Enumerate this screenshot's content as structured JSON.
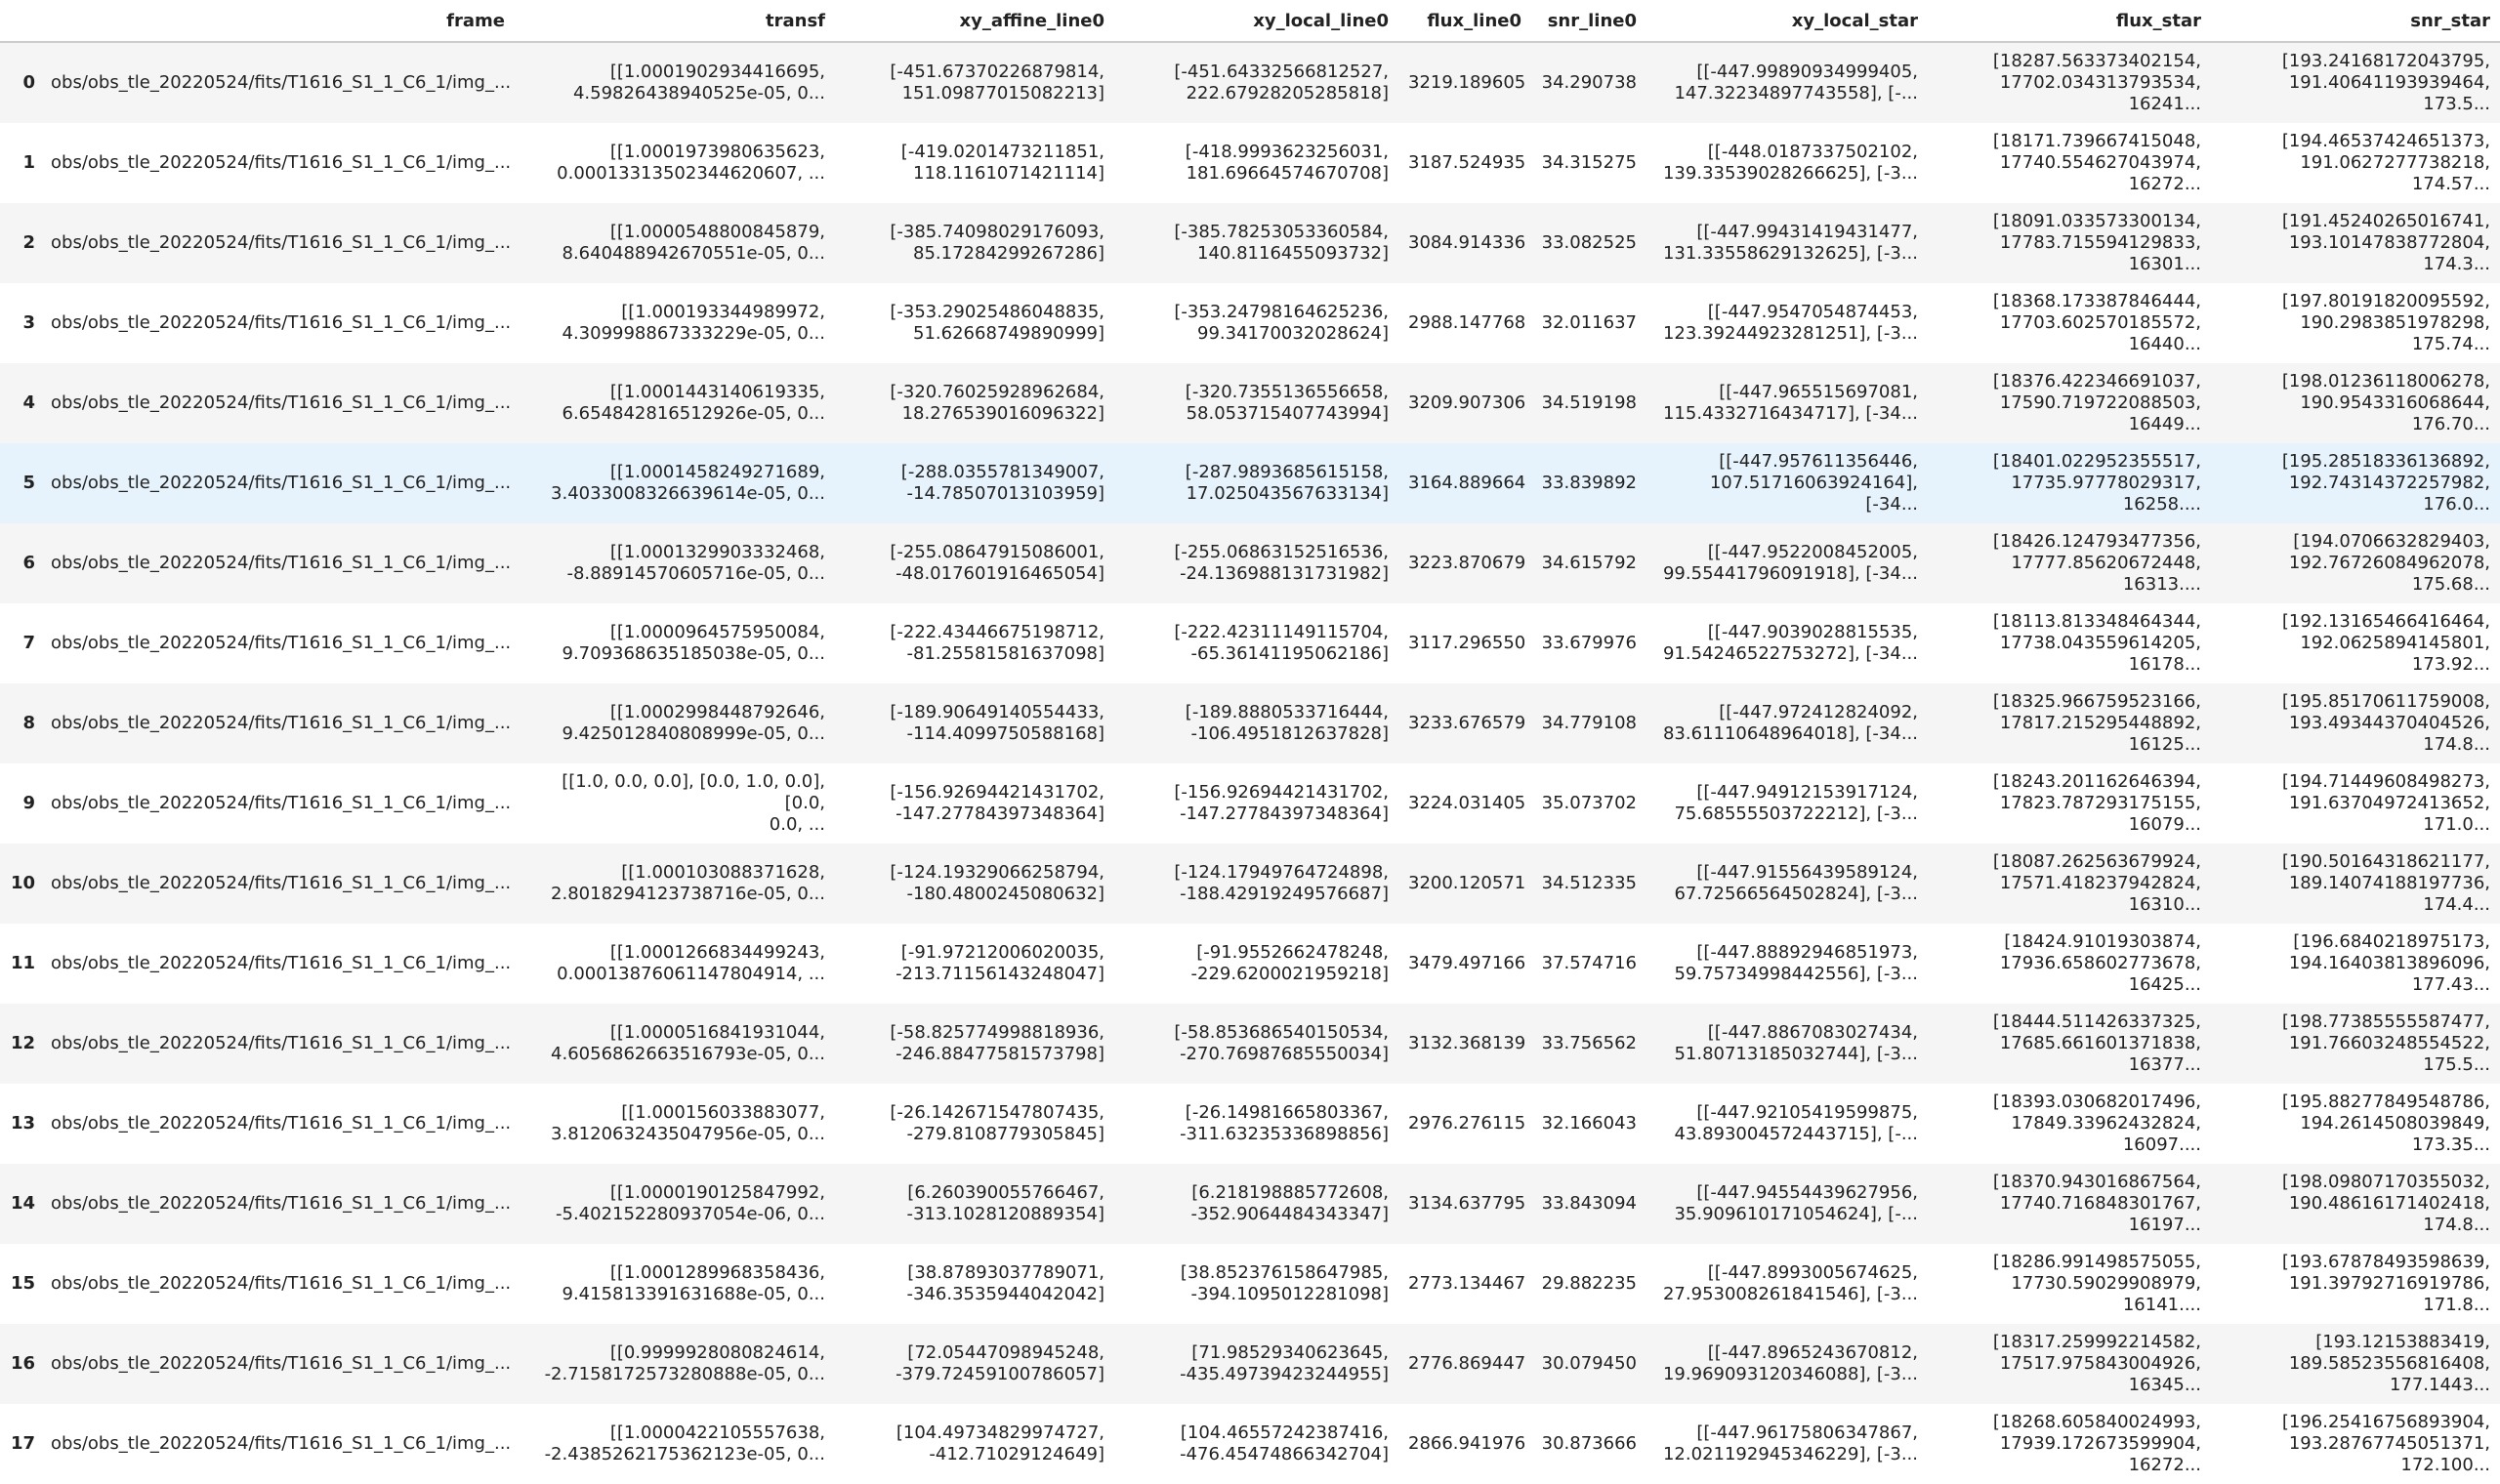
{
  "table": {
    "columns": [
      "frame",
      "transf",
      "xy_affine_line0",
      "xy_local_line0",
      "flux_line0",
      "snr_line0",
      "xy_local_star",
      "flux_star",
      "snr_star"
    ],
    "index": [
      0,
      1,
      2,
      3,
      4,
      5,
      6,
      7,
      8,
      9,
      10,
      11,
      12,
      13,
      14,
      15,
      16,
      17
    ],
    "rows": [
      [
        "obs/obs_tle_20220524/fits/T1616_S1_1_C6_1/img_...",
        "[[1.0001902934416695,\n4.59826438940525e-05, 0...",
        "[-451.67370226879814,\n151.09877015082213]",
        "[-451.64332566812527,\n222.67928205285818]",
        "3219.189605",
        "34.290738",
        "[[-447.99890934999405,\n147.32234897743558], [-...",
        "[18287.563373402154,\n17702.034313793534, 16241...",
        "[193.24168172043795,\n191.40641193939464, 173.5..."
      ],
      [
        "obs/obs_tle_20220524/fits/T1616_S1_1_C6_1/img_...",
        "[[1.0001973980635623,\n0.00013313502344620607, ...",
        "[-419.0201473211851,\n118.1161071421114]",
        "[-418.9993623256031,\n181.69664574670708]",
        "3187.524935",
        "34.315275",
        "[[-448.0187337502102,\n139.33539028266625], [-3...",
        "[18171.739667415048,\n17740.554627043974,\n16272...",
        "[194.46537424651373,\n191.0627277738218, 174.57..."
      ],
      [
        "obs/obs_tle_20220524/fits/T1616_S1_1_C6_1/img_...",
        "[[1.0000548800845879,\n8.640488942670551e-05, 0...",
        "[-385.74098029176093,\n85.17284299267286]",
        "[-385.78253053360584,\n140.8116455093732]",
        "3084.914336",
        "33.082525",
        "[[-447.99431419431477,\n131.33558629132625], [-3...",
        "[18091.033573300134,\n17783.715594129833, 16301...",
        "[191.45240265016741,\n193.10147838772804, 174.3..."
      ],
      [
        "obs/obs_tle_20220524/fits/T1616_S1_1_C6_1/img_...",
        "[[1.000193344989972,\n4.309998867333229e-05, 0...",
        "[-353.29025486048835,\n51.62668749890999]",
        "[-353.24798164625236,\n99.34170032028624]",
        "2988.147768",
        "32.011637",
        "[[-447.9547054874453,\n123.39244923281251], [-3...",
        "[18368.173387846444,\n17703.602570185572,\n16440...",
        "[197.80191820095592,\n190.2983851978298, 175.74..."
      ],
      [
        "obs/obs_tle_20220524/fits/T1616_S1_1_C6_1/img_...",
        "[[1.0001443140619335,\n6.654842816512926e-05, 0...",
        "[-320.76025928962684,\n18.276539016096322]",
        "[-320.7355136556658,\n58.053715407743994]",
        "3209.907306",
        "34.519198",
        "[[-447.965515697081,\n115.4332716434717], [-34...",
        "[18376.422346691037,\n17590.719722088503,\n16449...",
        "[198.01236118006278,\n190.9543316068644,\n176.70..."
      ],
      [
        "obs/obs_tle_20220524/fits/T1616_S1_1_C6_1/img_...",
        "[[1.0001458249271689,\n3.4033008326639614e-05, 0...",
        "[-288.0355781349007,\n-14.78507013103959]",
        "[-287.9893685615158,\n17.025043567633134]",
        "3164.889664",
        "33.839892",
        "[[-447.957611356446,\n107.51716063924164], [-34...",
        "[18401.022952355517,\n17735.97778029317, 16258....",
        "[195.28518336136892,\n192.74314372257982, 176.0..."
      ],
      [
        "obs/obs_tle_20220524/fits/T1616_S1_1_C6_1/img_...",
        "[[1.0001329903332468,\n-8.88914570605716e-05, 0...",
        "[-255.08647915086001,\n-48.017601916465054]",
        "[-255.06863152516536,\n-24.136988131731982]",
        "3223.870679",
        "34.615792",
        "[[-447.9522008452005,\n99.55441796091918], [-34...",
        "[18426.124793477356,\n17777.85620672448, 16313....",
        "[194.0706632829403,\n192.76726084962078,\n175.68..."
      ],
      [
        "obs/obs_tle_20220524/fits/T1616_S1_1_C6_1/img_...",
        "[[1.0000964575950084,\n9.709368635185038e-05, 0...",
        "[-222.43446675198712,\n-81.25581581637098]",
        "[-222.42311149115704,\n-65.36141195062186]",
        "3117.296550",
        "33.679976",
        "[[-447.9039028815535,\n91.54246522753272], [-34...",
        "[18113.813348464344,\n17738.043559614205, 16178...",
        "[192.13165466416464,\n192.0625894145801, 173.92..."
      ],
      [
        "obs/obs_tle_20220524/fits/T1616_S1_1_C6_1/img_...",
        "[[1.0002998448792646,\n9.425012840808999e-05, 0...",
        "[-189.90649140554433,\n-114.4099750588168]",
        "[-189.8880533716444,\n-106.4951812637828]",
        "3233.676579",
        "34.779108",
        "[[-447.972412824092,\n83.61110648964018], [-34...",
        "[18325.966759523166,\n17817.215295448892, 16125...",
        "[195.85170611759008,\n193.49344370404526,\n174.8..."
      ],
      [
        "obs/obs_tle_20220524/fits/T1616_S1_1_C6_1/img_...",
        "[[1.0, 0.0, 0.0], [0.0, 1.0, 0.0], [0.0,\n0.0, ...",
        "[-156.92694421431702,\n-147.27784397348364]",
        "[-156.92694421431702,\n-147.27784397348364]",
        "3224.031405",
        "35.073702",
        "[[-447.94912153917124,\n75.68555503722212], [-3...",
        "[18243.201162646394,\n17823.787293175155, 16079...",
        "[194.71449608498273,\n191.63704972413652, 171.0..."
      ],
      [
        "obs/obs_tle_20220524/fits/T1616_S1_1_C6_1/img_...",
        "[[1.000103088371628,\n2.8018294123738716e-05, 0...",
        "[-124.19329066258794,\n-180.4800245080632]",
        "[-124.17949764724898,\n-188.42919249576687]",
        "3200.120571",
        "34.512335",
        "[[-447.91556439589124,\n67.72566564502824], [-3...",
        "[18087.262563679924,\n17571.418237942824, 16310...",
        "[190.50164318621177,\n189.14074188197736, 174.4..."
      ],
      [
        "obs/obs_tle_20220524/fits/T1616_S1_1_C6_1/img_...",
        "[[1.0001266834499243,\n0.00013876061147804914, ...",
        "[-91.97212006020035,\n-213.71156143248047]",
        "[-91.9552662478248,\n-229.6200021959218]",
        "3479.497166",
        "37.574716",
        "[[-447.88892946851973,\n59.75734998442556], [-3...",
        "[18424.91019303874,\n17936.658602773678,\n16425...",
        "[196.6840218975173,\n194.16403813896096,\n177.43..."
      ],
      [
        "obs/obs_tle_20220524/fits/T1616_S1_1_C6_1/img_...",
        "[[1.0000516841931044,\n4.6056862663516793e-05, 0...",
        "[-58.825774998818936,\n-246.88477581573798]",
        "[-58.853686540150534,\n-270.76987685550034]",
        "3132.368139",
        "33.756562",
        "[[-447.8867083027434,\n51.80713185032744], [-3...",
        "[18444.511426337325,\n17685.661601371838, 16377...",
        "[198.77385555587477,\n191.76603248554522, 175.5..."
      ],
      [
        "obs/obs_tle_20220524/fits/T1616_S1_1_C6_1/img_...",
        "[[1.000156033883077,\n3.8120632435047956e-05, 0...",
        "[-26.142671547807435,\n-279.8108779305845]",
        "[-26.14981665803367,\n-311.63235336898856]",
        "2976.276115",
        "32.166043",
        "[[-447.92105419599875,\n43.893004572443715], [-...",
        "[18393.030682017496,\n17849.33962432824, 16097....",
        "[195.88277849548786,\n194.2614508039849,\n173.35..."
      ],
      [
        "obs/obs_tle_20220524/fits/T1616_S1_1_C6_1/img_...",
        "[[1.0000190125847992,\n-5.402152280937054e-06, 0...",
        "[6.260390055766467,\n-313.1028120889354]",
        "[6.218198885772608,\n-352.9064484343347]",
        "3134.637795",
        "33.843094",
        "[[-447.94554439627956,\n35.909610171054624], [-...",
        "[18370.943016867564,\n17740.716848301767, 16197...",
        "[198.09807170355032,\n190.48616171402418, 174.8..."
      ],
      [
        "obs/obs_tle_20220524/fits/T1616_S1_1_C6_1/img_...",
        "[[1.0001289968358436,\n9.415813391631688e-05, 0...",
        "[38.87893037789071,\n-346.3535944042042]",
        "[38.852376158647985,\n-394.1095012281098]",
        "2773.134467",
        "29.882235",
        "[[-447.8993005674625,\n27.953008261841546], [-3...",
        "[18286.991498575055,\n17730.59029908979, 16141....",
        "[193.67878493598639,\n191.39792716919786, 171.8..."
      ],
      [
        "obs/obs_tle_20220524/fits/T1616_S1_1_C6_1/img_...",
        "[[0.9999928080824614,\n-2.7158172573280888e-05, 0...",
        "[72.05447098945248,\n-379.72459100786057]",
        "[71.98529340623645,\n-435.49739423244955]",
        "2776.869447",
        "30.079450",
        "[[-447.8965243670812,\n19.969093120346088], [-3...",
        "[18317.259992214582,\n17517.975843004926,\n16345...",
        "[193.12153883419,\n189.58523556816408,\n177.1443..."
      ],
      [
        "obs/obs_tle_20220524/fits/T1616_S1_1_C6_1/img_...",
        "[[1.0000422105557638,\n-2.4385262175362123e-05, 0...",
        "[104.49734829974727,\n-412.71029124649]",
        "[104.46557242387416,\n-476.45474866342704]",
        "2866.941976",
        "30.873666",
        "[[-447.96175806347867,\n12.021192945346229], [-3...",
        "[18268.605840024993,\n17939.172673599904,\n16272...",
        "[196.25416756893904,\n193.28767745051371, 172.100..."
      ]
    ]
  }
}
